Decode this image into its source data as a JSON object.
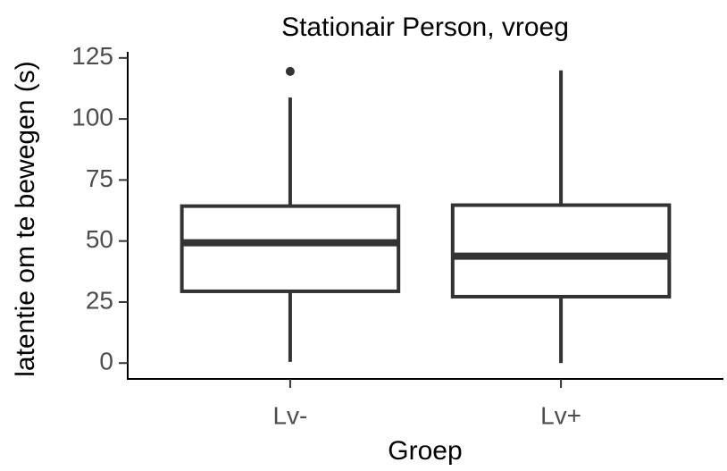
{
  "chart_data": {
    "type": "box",
    "title": "Stationair Person, vroeg",
    "x_label": "Groep",
    "y_label": "latentie om te bewegen (s)",
    "categories": [
      "Lv-",
      "Lv+"
    ],
    "min": [
      0.5,
      0
    ],
    "q1": [
      29.4,
      27.2
    ],
    "median": [
      49.3,
      43.8
    ],
    "q3": [
      64.3,
      64.7
    ],
    "max": [
      108.8,
      119.9
    ],
    "outliers": [
      [
        119.5
      ],
      []
    ],
    "color": "#333333",
    "ylim": [
      -6.5,
      127.5
    ],
    "yticks": [
      0,
      25,
      50,
      75,
      100,
      125
    ]
  }
}
